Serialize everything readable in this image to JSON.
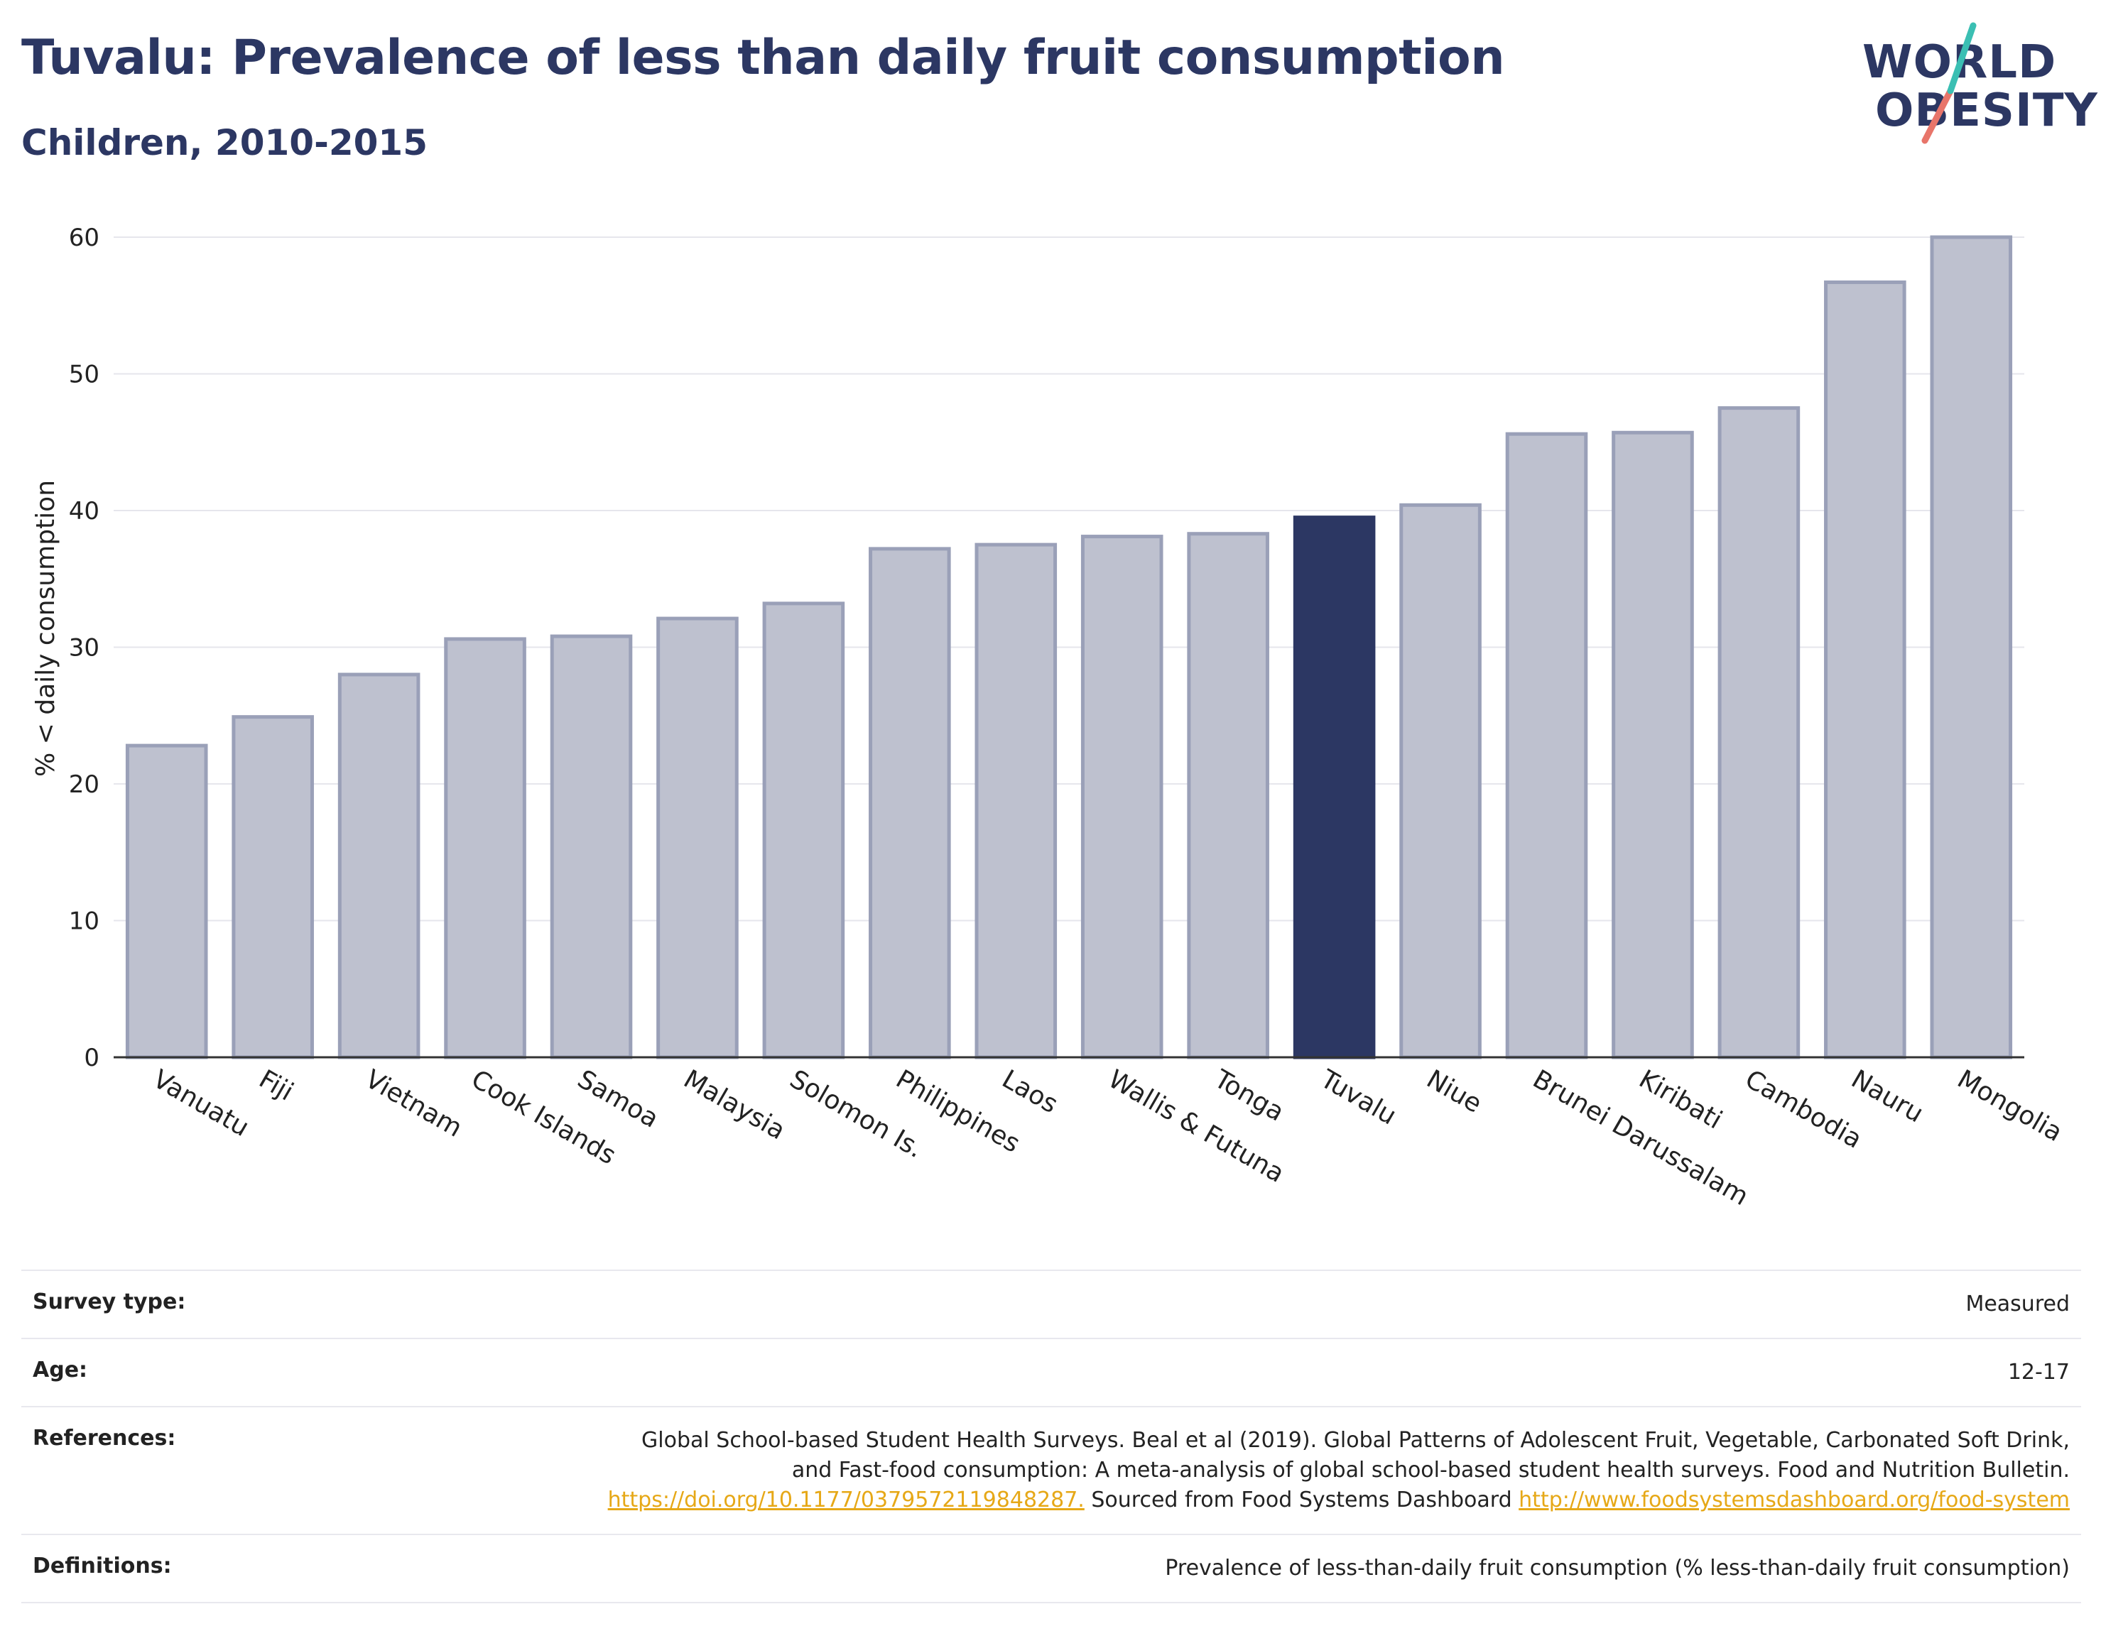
{
  "header": {
    "title": "Tuvalu: Prevalence of less than daily fruit consumption",
    "subtitle": "Children, 2010-2015"
  },
  "logo": {
    "line1": "WORLD",
    "line2": "OBESITY",
    "accent_teal": "#3bbfb3",
    "accent_coral": "#e8756a"
  },
  "colors": {
    "highlight": "#2c3763",
    "bar": "#bec1cf",
    "bar_border": "#9aa0b8",
    "gridline": "#e6e6ec",
    "link": "#e6a817"
  },
  "chart_data": {
    "type": "bar",
    "categories": [
      "Vanuatu",
      "Fiji",
      "Vietnam",
      "Cook Islands",
      "Samoa",
      "Malaysia",
      "Solomon Is.",
      "Philippines",
      "Laos",
      "Wallis & Futuna",
      "Tonga",
      "Tuvalu",
      "Niue",
      "Brunei Darussalam",
      "Kiribati",
      "Cambodia",
      "Nauru",
      "Mongolia"
    ],
    "values": [
      22.8,
      24.9,
      28.0,
      30.6,
      30.8,
      32.1,
      33.2,
      37.2,
      37.5,
      38.1,
      38.3,
      39.5,
      40.4,
      45.6,
      45.7,
      47.5,
      56.7,
      60.0
    ],
    "highlight": "Tuvalu",
    "xlabel": "",
    "ylabel": "% < daily consumption",
    "ylim": [
      0,
      60
    ],
    "yticks": [
      0,
      10,
      20,
      30,
      40,
      50,
      60
    ],
    "grid": true
  },
  "info": {
    "survey_label": "Survey type:",
    "survey_value": "Measured",
    "age_label": "Age:",
    "age_value": "12-17",
    "references_label": "References:",
    "references_line1": "Global School-based Student Health Surveys. Beal et al (2019). Global Patterns of Adolescent Fruit, Vegetable, Carbonated Soft Drink,",
    "references_line2": "and Fast-food consumption: A meta-analysis of global school-based student health surveys. Food and Nutrition Bulletin.",
    "references_link1": "https://doi.org/10.1177/0379572119848287.",
    "references_mid": " Sourced from Food Systems Dashboard ",
    "references_link2": "http://www.foodsystemsdashboard.org/food-system",
    "definitions_label": "Definitions:",
    "definitions_value": "Prevalence of less-than-daily fruit consumption (% less-than-daily fruit consumption)"
  }
}
